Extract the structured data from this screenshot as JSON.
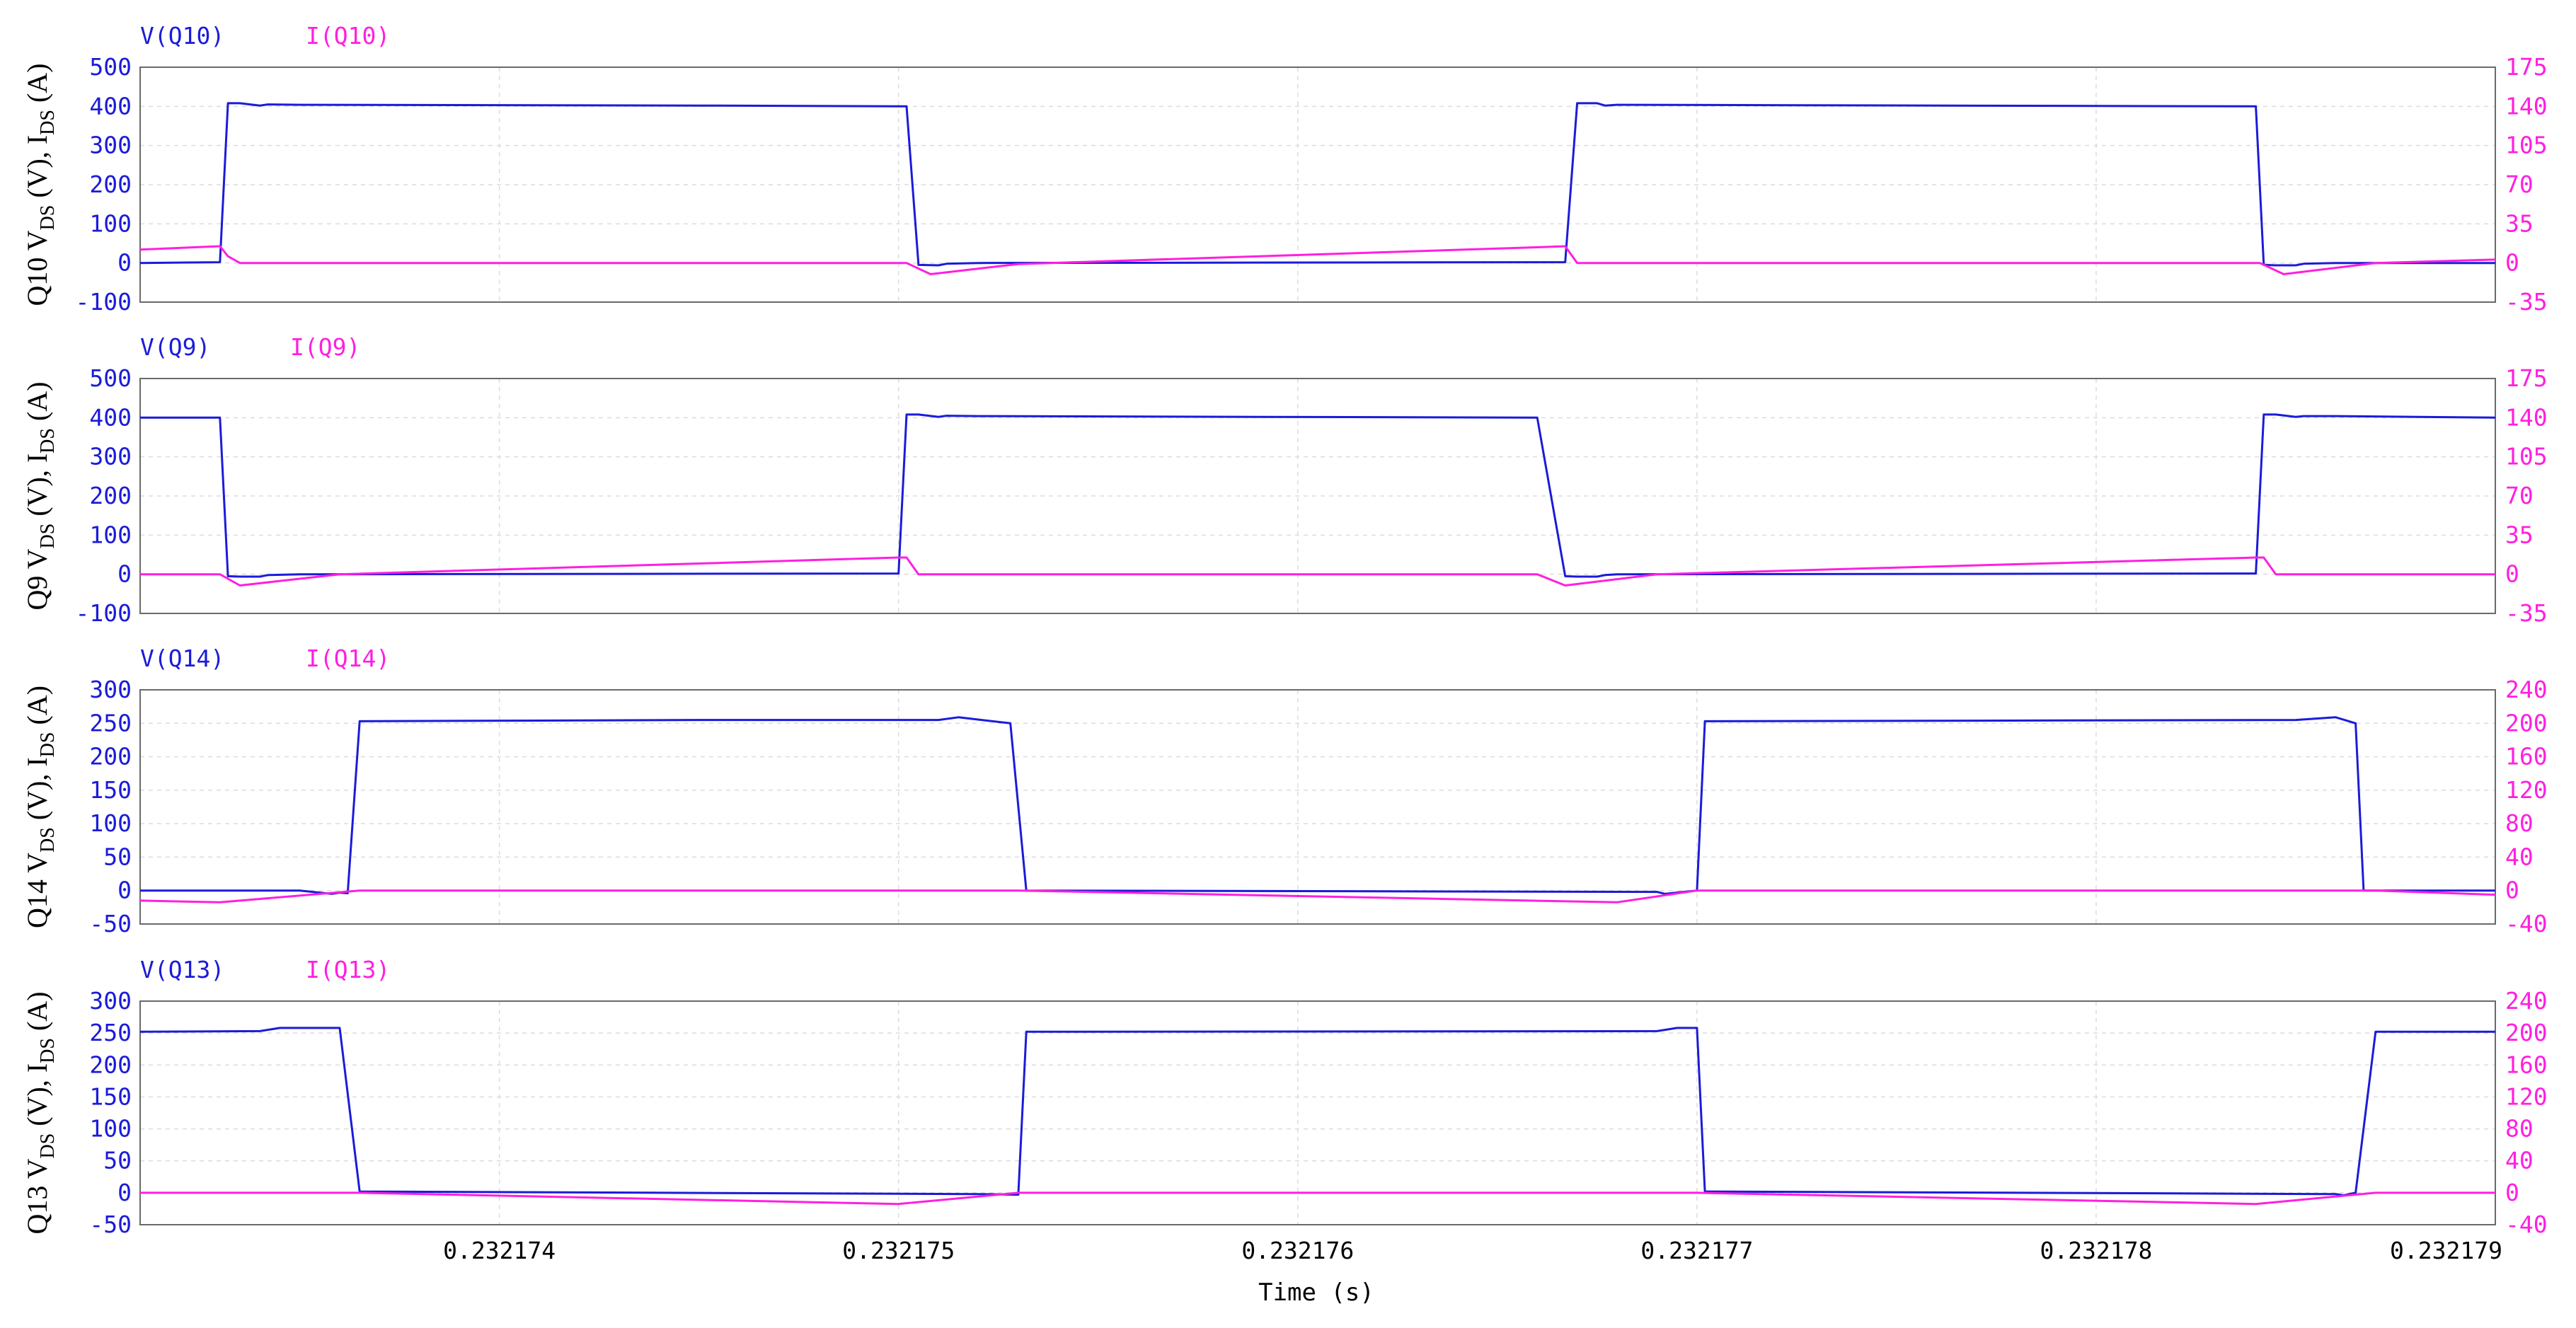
{
  "colors": {
    "voltage": "#1b1bd9",
    "current": "#ff1fe0",
    "grid": "#dcdcdc",
    "frame": "#6a6a6a"
  },
  "xaxis": {
    "label": "Time (s)",
    "range": [
      0.2321731,
      0.232179
    ],
    "ticks": [
      0.232174,
      0.232175,
      0.232176,
      0.232177,
      0.232178,
      0.232179
    ],
    "tick_labels": [
      "0.232174",
      "0.232175",
      "0.232176",
      "0.232177",
      "0.232178",
      "0.232179"
    ]
  },
  "chart_data": [
    {
      "type": "line",
      "ylabel": {
        "prefix": "Q10 V",
        "sub1": "DS",
        "middle": " (V), I",
        "sub2": "DS",
        "suffix": " (A)"
      },
      "ylim_left": [
        -100,
        500
      ],
      "ylim_right": [
        -35,
        175
      ],
      "yticks_left": [
        -100,
        0,
        100,
        200,
        300,
        400,
        500
      ],
      "ytick_labels_left": [
        "-100",
        "0",
        "100",
        "200",
        "300",
        "400",
        "500"
      ],
      "yticks_right": [
        -35,
        0,
        35,
        70,
        105,
        140,
        175
      ],
      "ytick_labels_right": [
        "-35",
        "0",
        "35",
        "70",
        "105",
        "140",
        "175"
      ],
      "grid": true,
      "series": [
        {
          "name": "V(Q10)",
          "axis": "left",
          "color": "#1b1bd9",
          "x": [
            0.2321731,
            0.2321733,
            0.23217332,
            0.23217335,
            0.2321734,
            0.23217342,
            0.2321735,
            0.2321745,
            0.23217502,
            0.23217505,
            0.2321751,
            0.23217512,
            0.2321752,
            0.2321766,
            0.23217667,
            0.2321767,
            0.23217675,
            0.23217677,
            0.2321768,
            0.2321784,
            0.23217842,
            0.23217845,
            0.2321785,
            0.23217852,
            0.2321786,
            0.232179
          ],
          "y": [
            0,
            2,
            408,
            408,
            402,
            405,
            404,
            402,
            400,
            -5,
            -6,
            -2,
            0,
            2,
            2,
            408,
            408,
            402,
            404,
            400,
            -5,
            -6,
            -6,
            -2,
            0,
            0
          ]
        },
        {
          "name": "I(Q10)",
          "axis": "right",
          "color": "#ff1fe0",
          "x": [
            0.2321731,
            0.2321733,
            0.23217332,
            0.23217335,
            0.23217502,
            0.23217508,
            0.2321753,
            0.2321766,
            0.23217667,
            0.2321767,
            0.23217841,
            0.23217847,
            0.2321787,
            0.232179
          ],
          "y": [
            12,
            15,
            6,
            0,
            0,
            -10,
            -1,
            14,
            15,
            0,
            0,
            -10,
            0,
            3
          ]
        }
      ]
    },
    {
      "type": "line",
      "ylabel": {
        "prefix": "Q9 V",
        "sub1": "DS",
        "middle": " (V), I",
        "sub2": "DS",
        "suffix": " (A)"
      },
      "ylim_left": [
        -100,
        500
      ],
      "ylim_right": [
        -35,
        175
      ],
      "yticks_left": [
        -100,
        0,
        100,
        200,
        300,
        400,
        500
      ],
      "ytick_labels_left": [
        "-100",
        "0",
        "100",
        "200",
        "300",
        "400",
        "500"
      ],
      "yticks_right": [
        -35,
        0,
        35,
        70,
        105,
        140,
        175
      ],
      "ytick_labels_right": [
        "-35",
        "0",
        "35",
        "70",
        "105",
        "140",
        "175"
      ],
      "grid": true,
      "series": [
        {
          "name": "V(Q9)",
          "axis": "left",
          "color": "#1b1bd9",
          "x": [
            0.2321731,
            0.2321733,
            0.23217332,
            0.23217335,
            0.2321734,
            0.23217342,
            0.2321735,
            0.232175,
            0.23217502,
            0.23217505,
            0.2321751,
            0.23217512,
            0.2321752,
            0.2321766,
            0.23217667,
            0.2321767,
            0.23217675,
            0.23217677,
            0.2321768,
            0.2321784,
            0.23217842,
            0.23217845,
            0.2321785,
            0.23217852,
            0.2321786,
            0.232179
          ],
          "y": [
            400,
            400,
            -5,
            -6,
            -6,
            -2,
            0,
            2,
            408,
            408,
            402,
            405,
            404,
            400,
            -5,
            -6,
            -6,
            -2,
            0,
            2,
            408,
            408,
            402,
            404,
            404,
            400
          ]
        },
        {
          "name": "I(Q9)",
          "axis": "right",
          "color": "#ff1fe0",
          "x": [
            0.2321731,
            0.2321733,
            0.23217335,
            0.2321736,
            0.232175,
            0.23217502,
            0.23217505,
            0.2321766,
            0.23217667,
            0.2321769,
            0.2321784,
            0.23217842,
            0.23217845,
            0.232179
          ],
          "y": [
            0,
            0,
            -10,
            0,
            15,
            15,
            0,
            0,
            -10,
            0,
            15,
            15,
            0,
            0
          ]
        }
      ]
    },
    {
      "type": "line",
      "ylabel": {
        "prefix": "Q14 V",
        "sub1": "DS",
        "middle": " (V), I",
        "sub2": "DS",
        "suffix": " (A)"
      },
      "ylim_left": [
        -50,
        300
      ],
      "ylim_right": [
        -40,
        240
      ],
      "yticks_left": [
        -50,
        0,
        50,
        100,
        150,
        200,
        250,
        300
      ],
      "ytick_labels_left": [
        "-50",
        "0",
        "50",
        "100",
        "150",
        "200",
        "250",
        "300"
      ],
      "yticks_right": [
        -40,
        0,
        40,
        80,
        120,
        160,
        200,
        240
      ],
      "ytick_labels_right": [
        "-40",
        "0",
        "40",
        "80",
        "120",
        "160",
        "200",
        "240"
      ],
      "grid": true,
      "series": [
        {
          "name": "V(Q14)",
          "axis": "left",
          "color": "#1b1bd9",
          "x": [
            0.2321731,
            0.2321735,
            0.23217358,
            0.2321736,
            0.23217362,
            0.23217365,
            0.2321745,
            0.2321751,
            0.23217515,
            0.23217528,
            0.23217532,
            0.2321769,
            0.23217692,
            0.232177,
            0.23217702,
            0.2321785,
            0.2321786,
            0.23217865,
            0.23217867,
            0.232179
          ],
          "y": [
            0,
            0,
            -5,
            -3,
            -4,
            253,
            255,
            255,
            259,
            250,
            0,
            -2,
            -5,
            0,
            253,
            255,
            259,
            250,
            0,
            0
          ]
        },
        {
          "name": "I(Q14)",
          "axis": "right",
          "color": "#ff1fe0",
          "x": [
            0.2321731,
            0.2321733,
            0.23217365,
            0.2321753,
            0.2321768,
            0.232177,
            0.2321787,
            0.232179
          ],
          "y": [
            -12,
            -14,
            0,
            0,
            -14,
            0,
            0,
            -5
          ]
        }
      ]
    },
    {
      "type": "line",
      "ylabel": {
        "prefix": "Q13 V",
        "sub1": "DS",
        "middle": " (V), I",
        "sub2": "DS",
        "suffix": " (A)"
      },
      "ylim_left": [
        -50,
        300
      ],
      "ylim_right": [
        -40,
        240
      ],
      "yticks_left": [
        -50,
        0,
        50,
        100,
        150,
        200,
        250,
        300
      ],
      "ytick_labels_left": [
        "-50",
        "0",
        "50",
        "100",
        "150",
        "200",
        "250",
        "300"
      ],
      "yticks_right": [
        -40,
        0,
        40,
        80,
        120,
        160,
        200,
        240
      ],
      "ytick_labels_right": [
        "-40",
        "0",
        "40",
        "80",
        "120",
        "160",
        "200",
        "240"
      ],
      "grid": true,
      "series": [
        {
          "name": "V(Q13)",
          "axis": "left",
          "color": "#1b1bd9",
          "x": [
            0.2321731,
            0.2321734,
            0.23217345,
            0.2321736,
            0.23217365,
            0.2321752,
            0.2321753,
            0.23217532,
            0.2321754,
            0.2321769,
            0.23217695,
            0.232177,
            0.23217702,
            0.2321786,
            0.23217862,
            0.23217865,
            0.2321787,
            0.232179
          ],
          "y": [
            252,
            253,
            258,
            258,
            2,
            -2,
            -3,
            252,
            252,
            253,
            258,
            258,
            2,
            -2,
            -4,
            0,
            252,
            252
          ]
        },
        {
          "name": "I(Q13)",
          "axis": "right",
          "color": "#ff1fe0",
          "x": [
            0.2321731,
            0.23217365,
            0.232175,
            0.2321753,
            0.232177,
            0.2321784,
            0.2321787,
            0.232179
          ],
          "y": [
            0,
            0,
            -14,
            0,
            0,
            -14,
            0,
            0
          ]
        }
      ]
    }
  ]
}
